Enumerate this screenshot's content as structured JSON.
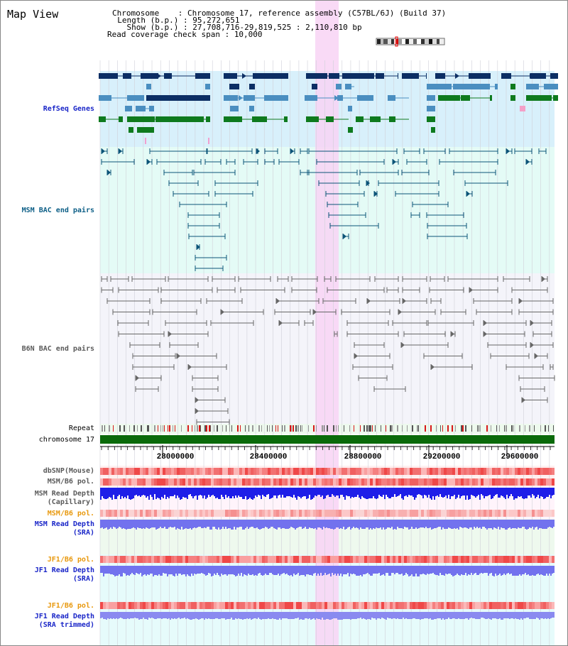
{
  "page": {
    "title": "Map View"
  },
  "info": {
    "chromosome_label": "Chromosome    : ",
    "chromosome_value": "Chromosome 17, reference assembly (C57BL/6J) (Build 37)",
    "length_label": "  Length (b.p.) : ",
    "length_value": "95,272,651",
    "show_label": "    Show (b.p.) : ",
    "show_value": "27,708,716-29,819,525 : 2,110,810 bp",
    "span_label": "Read coverage check span : ",
    "span_value": "10,000"
  },
  "tracks": {
    "refseq": "RefSeq Genes",
    "msm_bac": "MSM BAC end pairs",
    "b6n_bac": "B6N BAC end pairs",
    "repeat": "Repeat",
    "chromosome": "chromosome 17",
    "dbsnp": "dbSNP(Mouse)",
    "msm_b6_pol_1": "MSM/B6 pol.",
    "msm_depth_cap_1": "MSM Read Depth",
    "msm_depth_cap_2": "(Capillary)",
    "msm_b6_pol_2": "MSM/B6 pol.",
    "msm_depth_sra_1": "MSM Read Depth",
    "msm_depth_sra_2": "(SRA)",
    "jf1_b6_pol_1": "JF1/B6 pol.",
    "jf1_depth_sra_1": "JF1 Read Depth",
    "jf1_depth_sra_2": "(SRA)",
    "jf1_b6_pol_2": "JF1/B6 pol.",
    "jf1_depth_trim_1": "JF1 Read Depth",
    "jf1_depth_trim_2": "(SRA trimmed)"
  },
  "axis": {
    "ticks": [
      "28000000",
      "28400000",
      "28800000",
      "29200000",
      "29600000"
    ]
  },
  "colors": {
    "highlight": "#f8d4f4",
    "refseq_bg": "#d8f0fb",
    "msm_bg": "#e4fbf6",
    "b6n_bg": "#f4f4fa",
    "navy": "#0c2e64",
    "teal_blue": "#4a8ec0",
    "green": "#0e7a1e",
    "msm_line": "#0c5478",
    "b6n_line": "#666666",
    "chrom": "#0a6a0a",
    "label_blue": "#1a26c8",
    "label_teal": "#0c5e86",
    "label_gray": "#5a5a5a",
    "label_orange": "#e8980c",
    "depth_dark": "#1e1ee8",
    "depth_light": "#7272ee"
  }
}
